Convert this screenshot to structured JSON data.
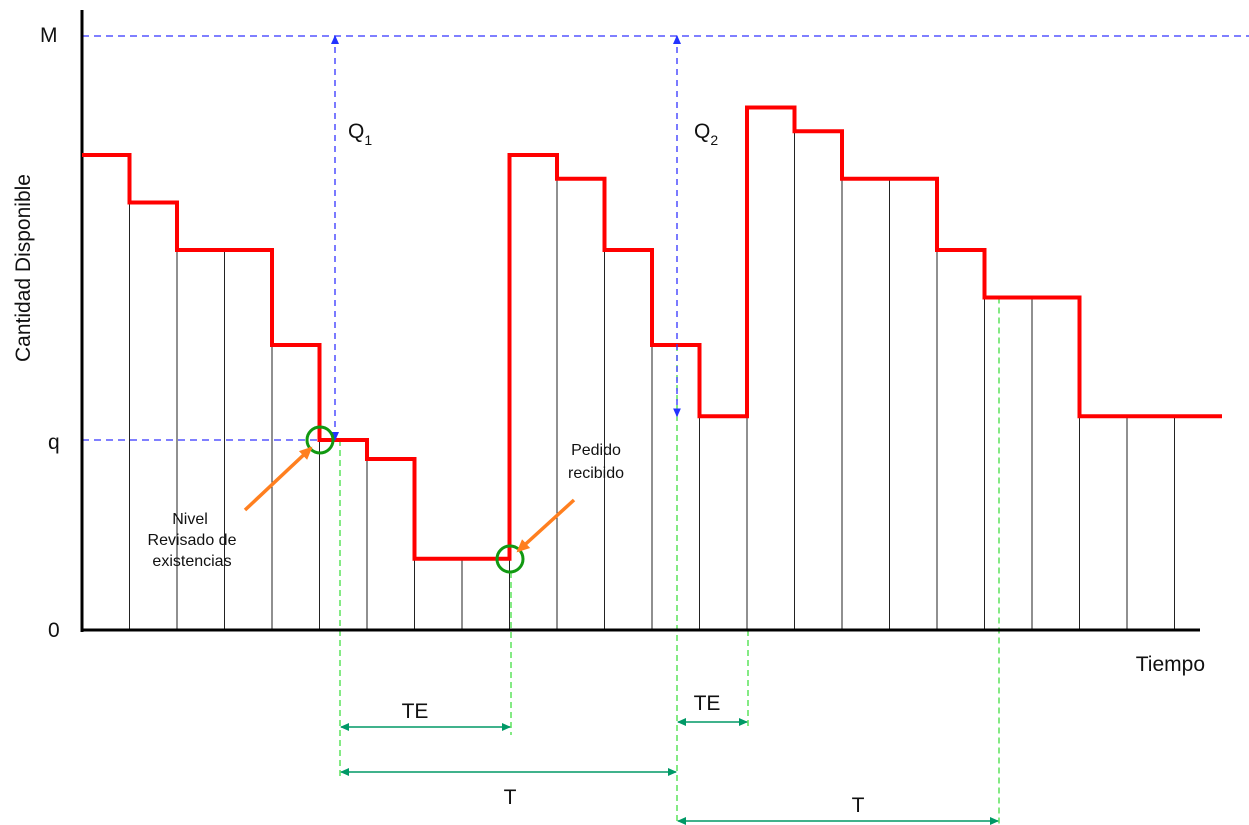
{
  "chart_data": {
    "type": "line",
    "title": "",
    "xlabel": "Tiempo",
    "ylabel": "Cantidad Disponible",
    "y_tick_labels": {
      "zero": "0",
      "reorder": "q",
      "max": "M"
    },
    "inventory_levels": [
      100,
      90,
      80,
      80,
      60,
      40,
      36,
      15,
      15,
      100,
      95,
      80,
      60,
      45,
      110,
      105,
      95,
      95,
      80,
      70,
      70,
      45,
      45,
      45
    ],
    "step_at_reorder_point": 5,
    "order_received_step": 9,
    "order_review_at_step": 13,
    "second_receipt_step": 14,
    "annotations": {
      "q1": {
        "label": "Q",
        "sub": "1"
      },
      "q2": {
        "label": "Q",
        "sub": "2"
      },
      "reorder": "Nivel Revisado de existencias",
      "reorder_lines": [
        "Nivel",
        "Revisado de",
        "existencias"
      ],
      "received": "Pedido recibido",
      "received_lines": [
        "Pedido",
        "recibido"
      ],
      "te1": "TE",
      "te2": "TE",
      "t1": "T",
      "t2": "T"
    },
    "colors": {
      "inventory": "#ff0000",
      "reference_dashed": "#3333ff",
      "interval_guides": "#33dd33",
      "interval_arrows": "#009966",
      "annotation_arrows": "#ff7f1f",
      "markers": "#119911"
    }
  }
}
